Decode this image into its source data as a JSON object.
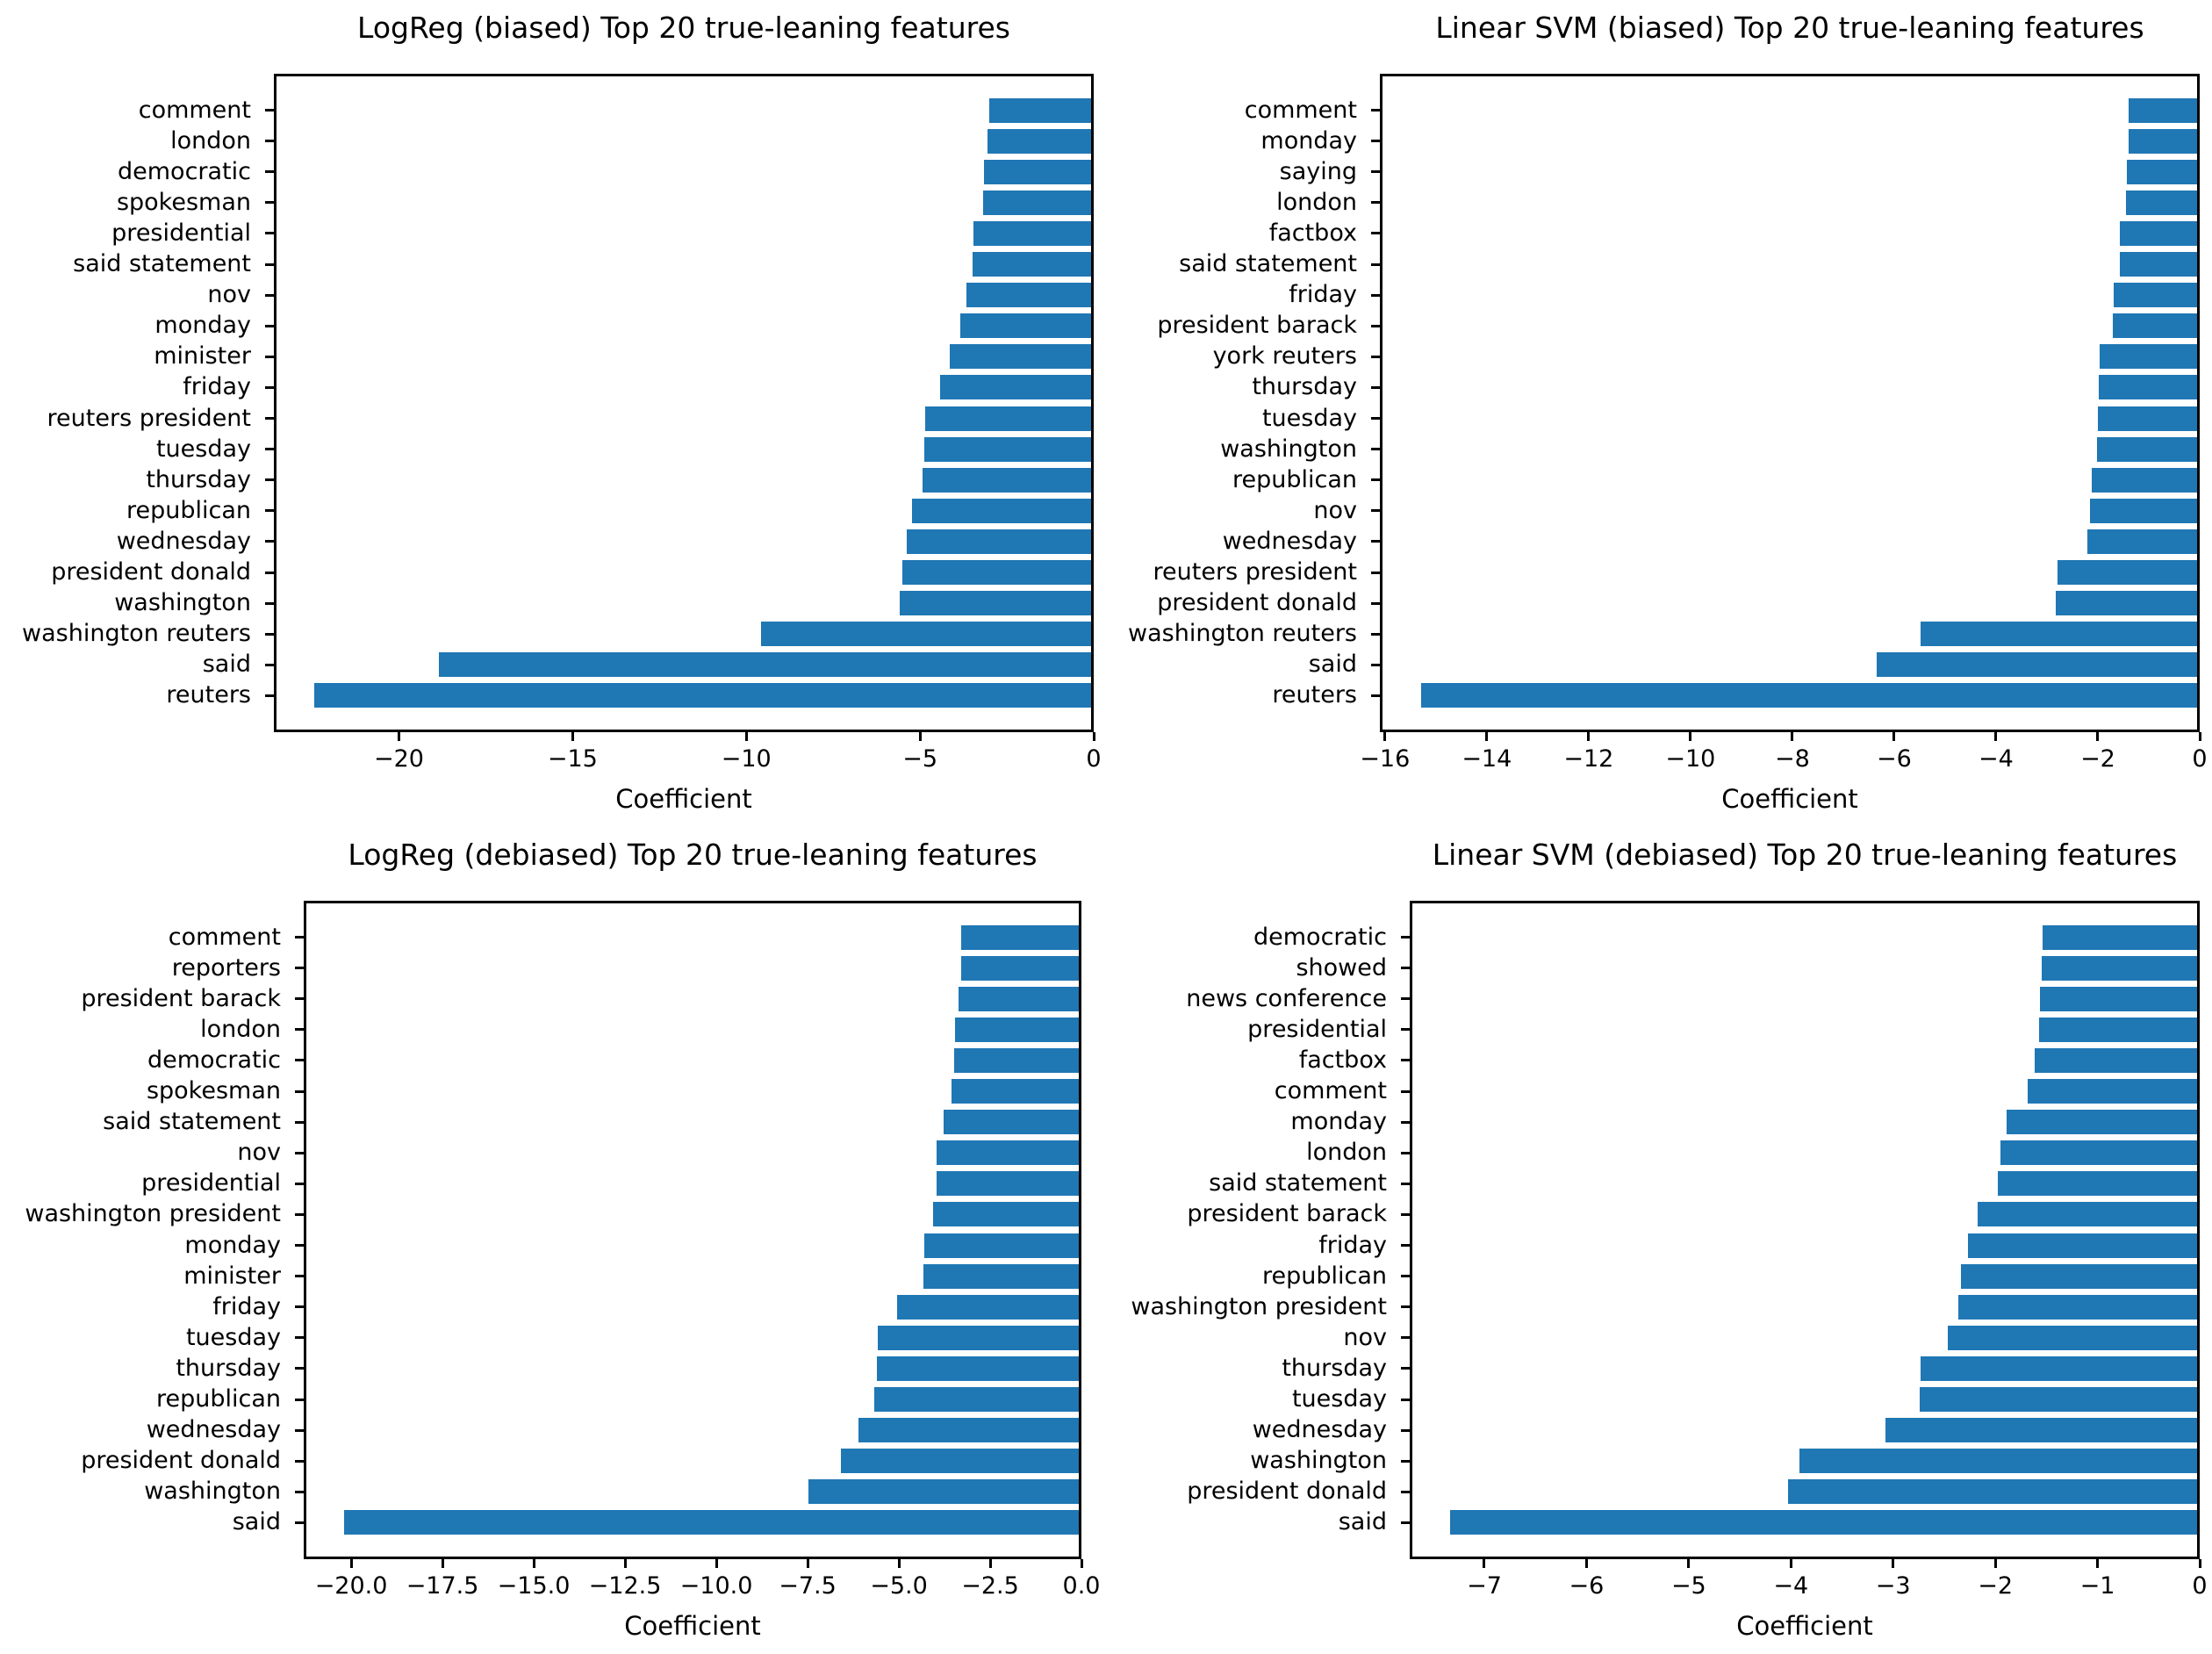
{
  "figure": {
    "background": "#ffffff",
    "bar_color": "#1f77b4"
  },
  "chart_data": [
    {
      "id": "logreg-biased",
      "type": "bar",
      "orientation": "horizontal",
      "title": "LogReg (biased) Top 20 true-leaning features",
      "xlabel": "Coefficient",
      "bar_color": "#1f77b4",
      "xlim": [
        -23.6,
        0
      ],
      "grid": false,
      "xticks": [
        {
          "value": -20,
          "label": "−20"
        },
        {
          "value": -15,
          "label": "−15"
        },
        {
          "value": -10,
          "label": "−10"
        },
        {
          "value": -5,
          "label": "−5"
        },
        {
          "value": 0,
          "label": "0"
        }
      ],
      "categories": [
        "comment",
        "london",
        "democratic",
        "spokesman",
        "presidential",
        "said statement",
        "nov",
        "monday",
        "minister",
        "friday",
        "reuters president",
        "tuesday",
        "thursday",
        "republican",
        "wednesday",
        "president donald",
        "washington",
        "washington reuters",
        "said",
        "reuters"
      ],
      "values": [
        -2.95,
        -3.0,
        -3.1,
        -3.12,
        -3.42,
        -3.44,
        -3.6,
        -3.8,
        -4.1,
        -4.37,
        -4.8,
        -4.82,
        -4.88,
        -5.2,
        -5.33,
        -5.48,
        -5.55,
        -9.55,
        -18.9,
        -22.5
      ]
    },
    {
      "id": "svm-biased",
      "type": "bar",
      "orientation": "horizontal",
      "title": "Linear SVM (biased) Top 20 true-leaning features",
      "xlabel": "Coefficient",
      "bar_color": "#1f77b4",
      "xlim": [
        -16.1,
        0
      ],
      "grid": false,
      "xticks": [
        {
          "value": -16,
          "label": "−16"
        },
        {
          "value": -14,
          "label": "−14"
        },
        {
          "value": -12,
          "label": "−12"
        },
        {
          "value": -10,
          "label": "−10"
        },
        {
          "value": -8,
          "label": "−8"
        },
        {
          "value": -6,
          "label": "−6"
        },
        {
          "value": -4,
          "label": "−4"
        },
        {
          "value": -2,
          "label": "−2"
        },
        {
          "value": 0,
          "label": "0"
        }
      ],
      "categories": [
        "comment",
        "monday",
        "saying",
        "london",
        "factbox",
        "said statement",
        "friday",
        "president barack",
        "york reuters",
        "thursday",
        "tuesday",
        "washington",
        "republican",
        "nov",
        "wednesday",
        "reuters president",
        "president donald",
        "washington reuters",
        "said",
        "reuters"
      ],
      "values": [
        -1.35,
        -1.35,
        -1.38,
        -1.4,
        -1.52,
        -1.53,
        -1.65,
        -1.67,
        -1.93,
        -1.95,
        -1.96,
        -1.98,
        -2.08,
        -2.11,
        -2.17,
        -2.76,
        -2.79,
        -5.46,
        -6.33,
        -15.33
      ]
    },
    {
      "id": "logreg-debiased",
      "type": "bar",
      "orientation": "horizontal",
      "title": "LogReg (debiased) Top 20 true-leaning features",
      "xlabel": "Coefficient",
      "bar_color": "#1f77b4",
      "xlim": [
        -21.3,
        0
      ],
      "grid": false,
      "xticks": [
        {
          "value": -20.0,
          "label": "−20.0"
        },
        {
          "value": -17.5,
          "label": "−17.5"
        },
        {
          "value": -15.0,
          "label": "−15.0"
        },
        {
          "value": -12.5,
          "label": "−12.5"
        },
        {
          "value": -10.0,
          "label": "−10.0"
        },
        {
          "value": -7.5,
          "label": "−7.5"
        },
        {
          "value": -5.0,
          "label": "−5.0"
        },
        {
          "value": -2.5,
          "label": "−2.5"
        },
        {
          "value": 0.0,
          "label": "0.0"
        }
      ],
      "categories": [
        "comment",
        "reporters",
        "president barack",
        "london",
        "democratic",
        "spokesman",
        "said statement",
        "nov",
        "presidential",
        "washington president",
        "monday",
        "minister",
        "friday",
        "tuesday",
        "thursday",
        "republican",
        "wednesday",
        "president donald",
        "washington",
        "said"
      ],
      "values": [
        -3.24,
        -3.25,
        -3.32,
        -3.42,
        -3.43,
        -3.52,
        -3.73,
        -3.91,
        -3.93,
        -4.03,
        -4.26,
        -4.28,
        -5.02,
        -5.55,
        -5.57,
        -5.65,
        -6.08,
        -6.57,
        -7.45,
        -20.25
      ]
    },
    {
      "id": "svm-debiased",
      "type": "bar",
      "orientation": "horizontal",
      "title": "Linear SVM (debiased) Top 20 true-leaning features",
      "xlabel": "Coefficient",
      "bar_color": "#1f77b4",
      "xlim": [
        -7.73,
        0
      ],
      "grid": false,
      "xticks": [
        {
          "value": -7,
          "label": "−7"
        },
        {
          "value": -6,
          "label": "−6"
        },
        {
          "value": -5,
          "label": "−5"
        },
        {
          "value": -4,
          "label": "−4"
        },
        {
          "value": -3,
          "label": "−3"
        },
        {
          "value": -2,
          "label": "−2"
        },
        {
          "value": -1,
          "label": "−1"
        },
        {
          "value": 0,
          "label": "0"
        }
      ],
      "categories": [
        "democratic",
        "showed",
        "news conference",
        "presidential",
        "factbox",
        "comment",
        "monday",
        "london",
        "said statement",
        "president barack",
        "friday",
        "republican",
        "washington president",
        "nov",
        "thursday",
        "tuesday",
        "wednesday",
        "washington",
        "president donald",
        "said"
      ],
      "values": [
        -1.52,
        -1.53,
        -1.55,
        -1.56,
        -1.6,
        -1.67,
        -1.88,
        -1.94,
        -1.96,
        -2.16,
        -2.26,
        -2.33,
        -2.35,
        -2.46,
        -2.72,
        -2.73,
        -3.07,
        -3.92,
        -4.03,
        -7.36
      ]
    }
  ]
}
